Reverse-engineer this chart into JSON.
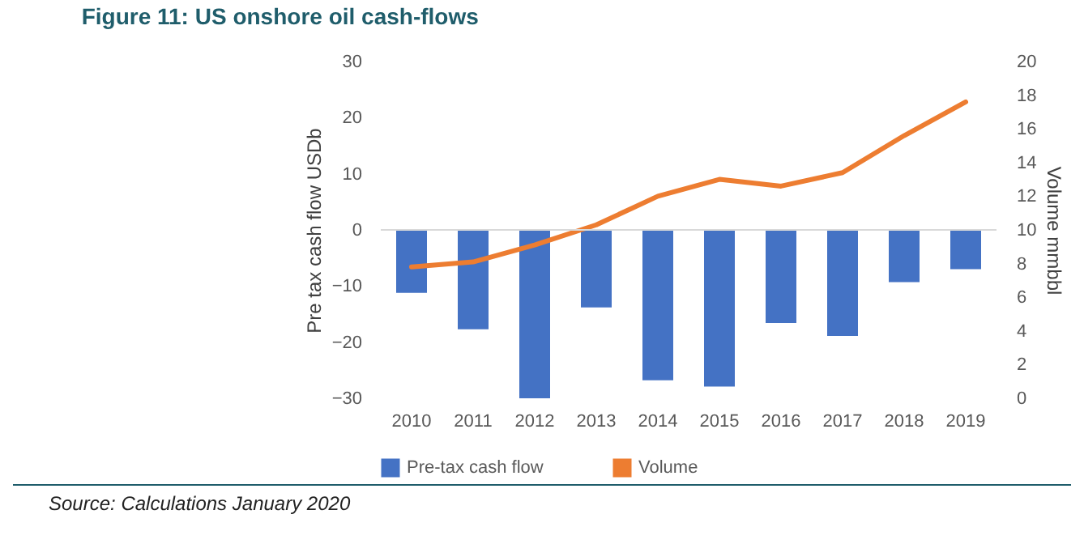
{
  "chart_data": {
    "type": "bar",
    "title": "Figure 11: US onshore oil cash-flows",
    "categories": [
      "2010",
      "2011",
      "2012",
      "2013",
      "2014",
      "2015",
      "2016",
      "2017",
      "2018",
      "2019"
    ],
    "series": [
      {
        "name": "Pre-tax cash flow",
        "color": "#4472c4",
        "values": [
          -11.2,
          -17.7,
          -30,
          -13.8,
          -26.8,
          -27.9,
          -16.6,
          -18.9,
          -9.3,
          -7.0
        ]
      },
      {
        "name": "Volume",
        "type": "line",
        "axis": "y2",
        "color": "#ed7d31",
        "values": [
          7.8,
          8.1,
          9.1,
          10.3,
          12.0,
          13.0,
          12.6,
          13.4,
          15.6,
          17.6
        ]
      }
    ],
    "ylabel": "Pre tax cash flow USDb",
    "y2label": "Volume mmbbl",
    "ylim": [
      -30,
      30
    ],
    "yticks": [
      -30,
      -20,
      -10,
      0,
      10,
      20,
      30
    ],
    "y2lim": [
      0,
      20
    ],
    "y2ticks": [
      0,
      2,
      4,
      6,
      8,
      10,
      12,
      14,
      16,
      18,
      20
    ],
    "ref_lines": [
      {
        "axis": "y",
        "value": 0,
        "color": "#d9d9d9"
      }
    ],
    "legend": "bottom",
    "grid": false,
    "annotations": [
      "Source: Calculations January 2020"
    ]
  }
}
